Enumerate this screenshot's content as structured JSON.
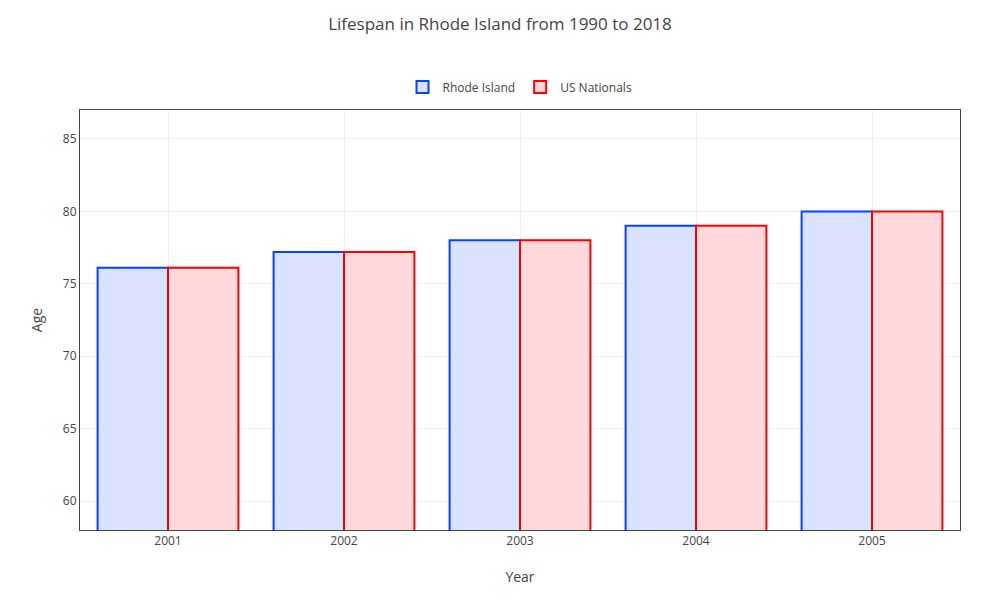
{
  "chart_data": {
    "type": "bar",
    "title": "Lifespan in Rhode Island from 1990 to 2018",
    "x_label": "Year",
    "y_label": "Age",
    "categories": [
      "2001",
      "2002",
      "2003",
      "2004",
      "2005"
    ],
    "series": [
      {
        "name": "Rhode Island",
        "color": "#0044ff",
        "values": [
          76.1,
          77.2,
          78.0,
          79.0,
          80.0
        ]
      },
      {
        "name": "US Nationals",
        "color": "#ff0000",
        "values": [
          76.1,
          77.2,
          78.0,
          79.0,
          80.0
        ]
      }
    ],
    "ylim": [
      58,
      87
    ],
    "yticks": [
      60,
      65,
      70,
      75,
      80,
      85
    ],
    "grid": true,
    "legend": "upper center"
  }
}
